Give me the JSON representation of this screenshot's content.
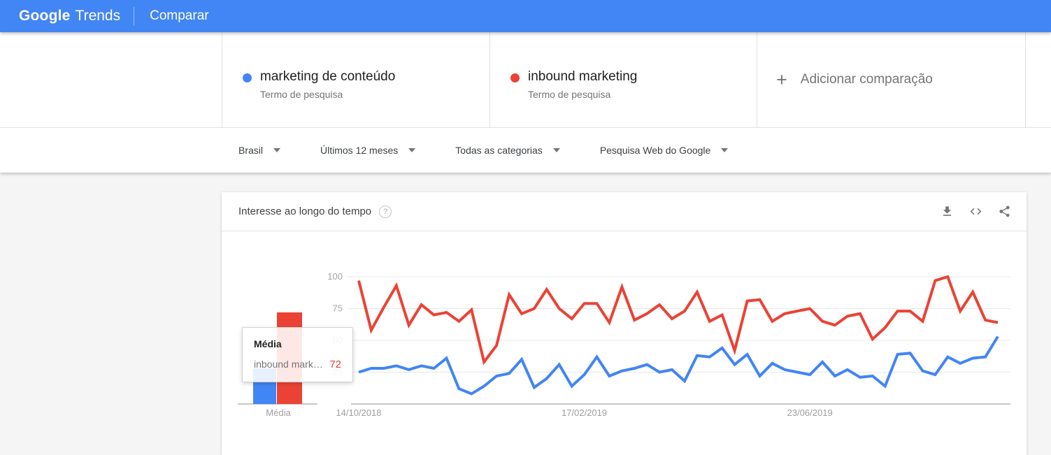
{
  "header": {
    "logo_google": "Google",
    "logo_trends": "Trends",
    "nav_comparar": "Comparar"
  },
  "terms": [
    {
      "label": "marketing de conteúdo",
      "sublabel": "Termo de pesquisa",
      "color": "#4285F4"
    },
    {
      "label": "inbound marketing",
      "sublabel": "Termo de pesquisa",
      "color": "#EA4335"
    }
  ],
  "add_comparison": {
    "label": "Adicionar comparação"
  },
  "filters": [
    {
      "label": "Brasil"
    },
    {
      "label": "Últimos 12 meses"
    },
    {
      "label": "Todas as categorias"
    },
    {
      "label": "Pesquisa Web do Google"
    }
  ],
  "chart_section": {
    "title": "Interesse ao longo do tempo",
    "action_icons": [
      "download-icon",
      "embed-code-icon",
      "share-icon"
    ]
  },
  "icons": {
    "plus": "+",
    "help": "?"
  },
  "tooltip": {
    "title": "Média",
    "rows": [
      {
        "label": "inbound mark…",
        "value": "72",
        "color": "#EA4335"
      }
    ]
  },
  "chart_data": {
    "type": "line",
    "title": "Interesse ao longo do tempo",
    "xlabel": "",
    "ylabel": "",
    "ylim": [
      0,
      100
    ],
    "y_ticks": [
      25,
      50,
      75,
      100
    ],
    "grid": true,
    "x_tick_labels": [
      "14/10/2018",
      "17/02/2019",
      "23/06/2019"
    ],
    "x_tick_indices": [
      0,
      18,
      36
    ],
    "series": [
      {
        "name": "marketing de conteúdo",
        "color": "#4285F4",
        "values": [
          25,
          28,
          28,
          30,
          27,
          30,
          28,
          36,
          12,
          8,
          14,
          22,
          24,
          35,
          13,
          20,
          31,
          14,
          23,
          37,
          22,
          26,
          28,
          31,
          25,
          27,
          18,
          38,
          37,
          44,
          31,
          39,
          22,
          32,
          27,
          25,
          23,
          33,
          22,
          27,
          21,
          22,
          14,
          39,
          40,
          26,
          23,
          37,
          32,
          36,
          37,
          53
        ]
      },
      {
        "name": "inbound marketing",
        "color": "#EA4335",
        "values": [
          97,
          58,
          76,
          93,
          62,
          78,
          70,
          72,
          65,
          74,
          33,
          46,
          86,
          71,
          75,
          90,
          75,
          67,
          79,
          79,
          64,
          92,
          66,
          71,
          78,
          67,
          73,
          88,
          65,
          70,
          42,
          81,
          82,
          65,
          71,
          73,
          75,
          65,
          62,
          69,
          71,
          51,
          60,
          73,
          73,
          65,
          97,
          100,
          73,
          88,
          66,
          64
        ]
      }
    ],
    "averages": {
      "label": "Média",
      "values": [
        {
          "name": "marketing de conteúdo",
          "value": 28,
          "color": "#4285F4"
        },
        {
          "name": "inbound marketing",
          "value": 72,
          "color": "#EA4335"
        }
      ]
    }
  }
}
